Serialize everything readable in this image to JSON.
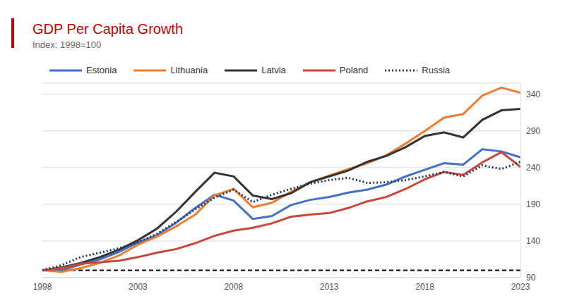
{
  "chart_data": {
    "type": "line",
    "title": "GDP Per Capita Growth",
    "subtitle": "Index: 1998=100",
    "x": [
      1998,
      1999,
      2000,
      2001,
      2002,
      2003,
      2004,
      2005,
      2006,
      2007,
      2008,
      2009,
      2010,
      2011,
      2012,
      2013,
      2014,
      2015,
      2016,
      2017,
      2018,
      2019,
      2020,
      2021,
      2022,
      2023
    ],
    "series": [
      {
        "name": "Estonia",
        "color": "#4472c4",
        "line_style": "solid",
        "values": [
          100,
          100,
          108,
          115,
          125,
          138,
          148,
          165,
          185,
          203,
          195,
          170,
          174,
          189,
          196,
          200,
          206,
          210,
          217,
          228,
          237,
          246,
          244,
          265,
          262,
          254
        ]
      },
      {
        "name": "Lithuania",
        "color": "#ed7d31",
        "line_style": "solid",
        "values": [
          100,
          98,
          103,
          110,
          120,
          135,
          146,
          160,
          176,
          202,
          211,
          186,
          192,
          207,
          220,
          229,
          238,
          246,
          257,
          273,
          290,
          308,
          313,
          338,
          349,
          342
        ]
      },
      {
        "name": "Latvia",
        "color": "#333333",
        "line_style": "solid",
        "values": [
          100,
          104,
          110,
          118,
          128,
          141,
          157,
          180,
          207,
          233,
          228,
          202,
          197,
          205,
          220,
          228,
          236,
          248,
          256,
          268,
          283,
          288,
          281,
          305,
          318,
          320
        ]
      },
      {
        "name": "Poland",
        "color": "#c9473a",
        "line_style": "solid",
        "values": [
          100,
          103,
          109,
          111,
          113,
          118,
          124,
          129,
          137,
          147,
          154,
          158,
          164,
          173,
          176,
          178,
          185,
          194,
          200,
          211,
          224,
          234,
          230,
          247,
          261,
          241
        ]
      },
      {
        "name": "Russia",
        "color": "#1f3864",
        "line_style": "dotted",
        "values": [
          100,
          107,
          118,
          124,
          130,
          138,
          150,
          166,
          183,
          199,
          210,
          193,
          203,
          211,
          218,
          223,
          226,
          219,
          220,
          223,
          228,
          234,
          228,
          243,
          238,
          248
        ]
      }
    ],
    "xlim": [
      1998,
      2023
    ],
    "xticks": [
      1998,
      2003,
      2008,
      2013,
      2018,
      2023
    ],
    "ylim": [
      90,
      355
    ],
    "yticks": [
      90,
      140,
      190,
      240,
      290,
      340
    ],
    "reference_line": {
      "value": 100,
      "color": "#000000",
      "line_style": "dashed"
    },
    "grid": true,
    "legend": "top"
  }
}
